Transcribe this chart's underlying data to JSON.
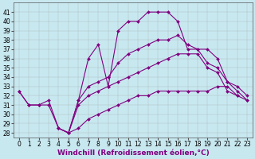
{
  "background_color": "#c8e8f0",
  "line_color": "#800080",
  "grid_color": "#a0a0a0",
  "xlabel": "Windchill (Refroidissement éolien,°C)",
  "xlim": [
    -0.5,
    23.5
  ],
  "ylim": [
    27.5,
    42
  ],
  "xticks": [
    0,
    1,
    2,
    3,
    4,
    5,
    6,
    7,
    8,
    9,
    10,
    11,
    12,
    13,
    14,
    15,
    16,
    17,
    18,
    19,
    20,
    21,
    22,
    23
  ],
  "yticks": [
    28,
    29,
    30,
    31,
    32,
    33,
    34,
    35,
    36,
    37,
    38,
    39,
    40,
    41
  ],
  "tick_fontsize": 5.5,
  "label_fontsize": 6.5,
  "curve_main": [
    32.5,
    31.0,
    31.0,
    31.5,
    28.5,
    28.0,
    31.5,
    36.0,
    37.5,
    33.0,
    39.0,
    40.0,
    40.0,
    41.0,
    41.0,
    41.0,
    40.0,
    37.0,
    37.0,
    37.0,
    36.0,
    33.5,
    32.5,
    31.5
  ],
  "curve_upper": [
    null,
    null,
    null,
    null,
    28.5,
    28.0,
    31.5,
    33.0,
    33.5,
    34.0,
    35.5,
    36.5,
    37.0,
    37.5,
    38.0,
    38.0,
    38.5,
    37.5,
    37.0,
    35.5,
    35.0,
    33.5,
    33.0,
    32.0
  ],
  "curve_lower": [
    null,
    null,
    null,
    null,
    28.5,
    28.0,
    31.0,
    32.0,
    32.5,
    33.0,
    33.5,
    34.0,
    34.5,
    35.0,
    35.5,
    36.0,
    36.5,
    36.5,
    36.5,
    35.0,
    34.5,
    32.5,
    32.0,
    null
  ],
  "curve_flat": [
    32.5,
    31.0,
    31.0,
    31.0,
    28.5,
    28.0,
    28.5,
    29.5,
    30.0,
    30.5,
    31.0,
    31.5,
    32.0,
    32.0,
    32.5,
    32.5,
    32.5,
    32.5,
    32.5,
    32.5,
    33.0,
    33.0,
    32.0,
    31.5
  ]
}
